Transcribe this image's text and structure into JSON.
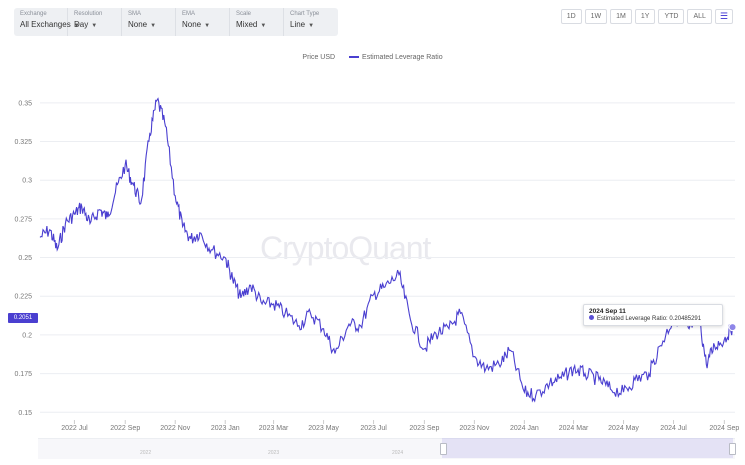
{
  "controls": [
    {
      "label": "Exchange",
      "value": "All Exchanges"
    },
    {
      "label": "Resolution",
      "value": "Day"
    },
    {
      "label": "SMA",
      "value": "None"
    },
    {
      "label": "EMA",
      "value": "None"
    },
    {
      "label": "Scale",
      "value": "Mixed"
    },
    {
      "label": "Chart Type",
      "value": "Line"
    }
  ],
  "ranges": [
    "1D",
    "1W",
    "1M",
    "1Y",
    "YTD",
    "ALL"
  ],
  "menu_icon": "hamburger-menu-icon",
  "legend": {
    "series_a": "Price USD",
    "series_b": "Estimated Leverage Ratio"
  },
  "watermark": "CryptoQuant",
  "current_value_label": "0.2051",
  "tooltip": {
    "date": "2024 Sep 11",
    "series": "Estimated Leverage Ratio",
    "value": "0.20485291"
  },
  "navigator_labels": [
    "2022",
    "2023",
    "2024"
  ],
  "colors": {
    "series": "#4a3fd0",
    "accent": "#3b2fd1"
  },
  "chart_data": {
    "type": "line",
    "title": "",
    "xlabel": "",
    "ylabel": "",
    "y_tick_labels": [
      "0.15",
      "0.175",
      "0.2",
      "0.225",
      "0.25",
      "0.275",
      "0.3",
      "0.325",
      "0.35"
    ],
    "x_tick_labels": [
      "2022 Jul",
      "2022 Sep",
      "2022 Nov",
      "2023 Jan",
      "2023 Mar",
      "2023 May",
      "2023 Jul",
      "2023 Sep",
      "2023 Nov",
      "2024 Jan",
      "2024 Mar",
      "2024 May",
      "2024 Jul",
      "2024 Sep"
    ],
    "ylim": [
      0.145,
      0.368
    ],
    "xlim": [
      "2022-05-20",
      "2024-09-14"
    ],
    "grid": "horizontal",
    "legend_position": "top-center",
    "series": [
      {
        "name": "Estimated Leverage Ratio",
        "x": [
          "2022-05-20",
          "2022-06-01",
          "2022-06-10",
          "2022-06-20",
          "2022-07-01",
          "2022-07-10",
          "2022-07-20",
          "2022-08-01",
          "2022-08-10",
          "2022-08-20",
          "2022-09-01",
          "2022-09-10",
          "2022-09-20",
          "2022-10-01",
          "2022-10-10",
          "2022-10-20",
          "2022-11-01",
          "2022-11-10",
          "2022-11-20",
          "2022-12-01",
          "2022-12-15",
          "2023-01-01",
          "2023-01-10",
          "2023-01-20",
          "2023-02-01",
          "2023-02-15",
          "2023-03-01",
          "2023-03-15",
          "2023-04-01",
          "2023-04-15",
          "2023-05-01",
          "2023-05-15",
          "2023-06-01",
          "2023-06-15",
          "2023-07-01",
          "2023-07-15",
          "2023-08-01",
          "2023-08-15",
          "2023-09-01",
          "2023-09-15",
          "2023-10-01",
          "2023-10-15",
          "2023-11-01",
          "2023-11-15",
          "2023-12-01",
          "2023-12-15",
          "2024-01-01",
          "2024-01-15",
          "2024-02-01",
          "2024-02-15",
          "2024-03-01",
          "2024-03-15",
          "2024-04-01",
          "2024-04-15",
          "2024-05-01",
          "2024-05-15",
          "2024-06-01",
          "2024-06-15",
          "2024-07-01",
          "2024-07-10",
          "2024-07-20",
          "2024-08-01",
          "2024-08-10",
          "2024-08-20",
          "2024-09-01",
          "2024-09-11"
        ],
        "y": [
          0.263,
          0.268,
          0.255,
          0.272,
          0.278,
          0.283,
          0.272,
          0.281,
          0.276,
          0.292,
          0.31,
          0.298,
          0.285,
          0.33,
          0.352,
          0.335,
          0.29,
          0.27,
          0.262,
          0.266,
          0.255,
          0.25,
          0.236,
          0.224,
          0.232,
          0.22,
          0.22,
          0.214,
          0.206,
          0.214,
          0.204,
          0.188,
          0.207,
          0.206,
          0.226,
          0.231,
          0.239,
          0.21,
          0.191,
          0.201,
          0.204,
          0.214,
          0.186,
          0.178,
          0.181,
          0.19,
          0.163,
          0.161,
          0.169,
          0.172,
          0.178,
          0.175,
          0.171,
          0.165,
          0.163,
          0.171,
          0.175,
          0.193,
          0.211,
          0.209,
          0.204,
          0.212,
          0.181,
          0.193,
          0.197,
          0.205
        ]
      }
    ]
  }
}
